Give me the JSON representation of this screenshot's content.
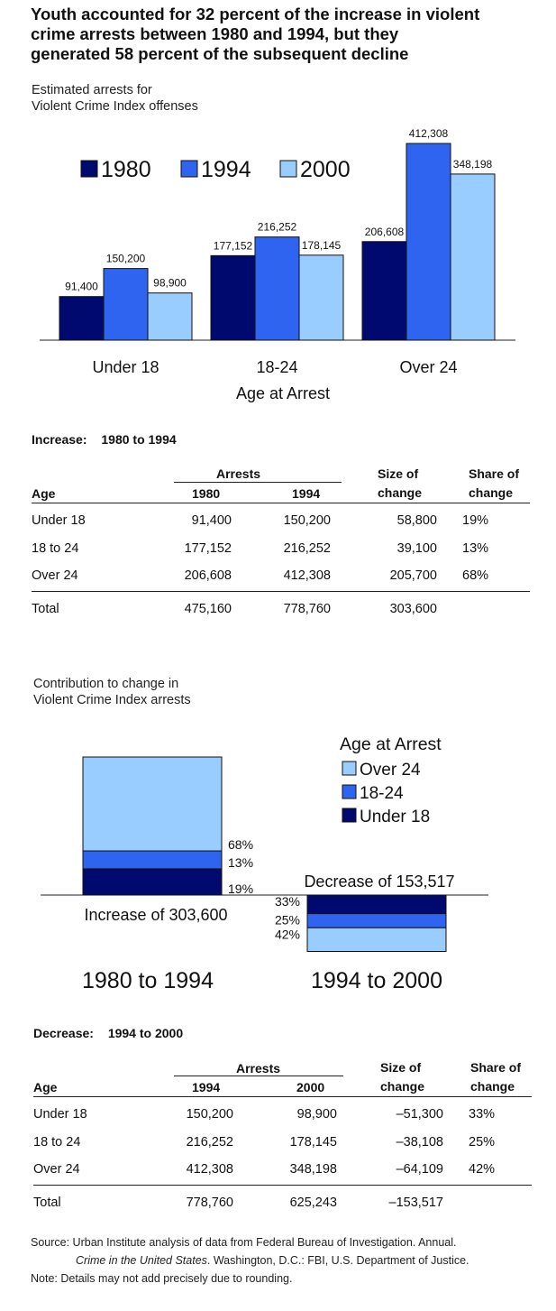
{
  "title": "Youth accounted for 32 percent of the increase in violent\ncrime arrests between 1980 and 1994, but they\ngenerated 58 percent of the subsequent decline",
  "colors": {
    "c1980": "#000a6e",
    "c1994": "#2e64f0",
    "c2000": "#99ccff",
    "under18": "#000a6e",
    "age18_24": "#2e64f0",
    "over24": "#99ccff"
  },
  "chart_data": [
    {
      "type": "bar",
      "subtitle": "Estimated arrests for\nViolent Crime Index offenses",
      "xlabel": "Age at Arrest",
      "ylabel": "",
      "ylim": [
        0,
        450000
      ],
      "categories": [
        "Under 18",
        "18-24",
        "Over 24"
      ],
      "series": [
        {
          "name": "1980",
          "values": [
            91400,
            177152,
            206608
          ],
          "labels": [
            "91,400",
            "177,152",
            "206,608"
          ]
        },
        {
          "name": "1994",
          "values": [
            150200,
            216252,
            412308
          ],
          "labels": [
            "150,200",
            "216,252",
            "412,308"
          ]
        },
        {
          "name": "2000",
          "values": [
            98900,
            178145,
            348198
          ],
          "labels": [
            "98,900",
            "178,145",
            "348,198"
          ]
        }
      ],
      "legend": "top-left"
    },
    {
      "type": "bar",
      "stacked": true,
      "subtitle": "Contribution to change in\nViolent Crime Index arrests",
      "legend_title": "Age at Arrest",
      "legend": [
        "Over 24",
        "18-24",
        "Under 18"
      ],
      "categories": [
        "1980 to 1994",
        "1994 to 2000"
      ],
      "increase_label": "Increase of 303,600",
      "decrease_label": "Decrease of 153,517",
      "series": [
        {
          "name": "Under 18",
          "values": [
            19,
            -33
          ],
          "labels": [
            "19%",
            "33%"
          ]
        },
        {
          "name": "18-24",
          "values": [
            13,
            -25
          ],
          "labels": [
            "13%",
            "25%"
          ]
        },
        {
          "name": "Over 24",
          "values": [
            68,
            -42
          ],
          "labels": [
            "68%",
            "42%"
          ]
        }
      ]
    }
  ],
  "increase_table": {
    "section_label": "Increase:",
    "section_period": "1980 to 1994",
    "headers": {
      "group": "Arrests",
      "age": "Age",
      "y1": "1980",
      "y2": "1994",
      "size1": "Size of",
      "size2": "change",
      "share1": "Share of",
      "share2": "change"
    },
    "rows": [
      {
        "age": "Under 18",
        "a": "91,400",
        "b": "150,200",
        "size": "58,800",
        "share": "19%"
      },
      {
        "age": "18 to 24",
        "a": "177,152",
        "b": "216,252",
        "size": "39,100",
        "share": "13%"
      },
      {
        "age": "Over 24",
        "a": "206,608",
        "b": "412,308",
        "size": "205,700",
        "share": "68%"
      }
    ],
    "total": {
      "age": "Total",
      "a": "475,160",
      "b": "778,760",
      "size": "303,600",
      "share": ""
    }
  },
  "decrease_table": {
    "section_label": "Decrease:",
    "section_period": "1994 to 2000",
    "headers": {
      "group": "Arrests",
      "age": "Age",
      "y1": "1994",
      "y2": "2000",
      "size1": "Size of",
      "size2": "change",
      "share1": "Share of",
      "share2": "change"
    },
    "rows": [
      {
        "age": "Under 18",
        "a": "150,200",
        "b": "98,900",
        "size": "–51,300",
        "share": "33%"
      },
      {
        "age": "18 to 24",
        "a": "216,252",
        "b": "178,145",
        "size": "–38,108",
        "share": "25%"
      },
      {
        "age": "Over 24",
        "a": "412,308",
        "b": "348,198",
        "size": "–64,109",
        "share": "42%"
      }
    ],
    "total": {
      "age": "Total",
      "a": "778,760",
      "b": "625,243",
      "size": "–153,517",
      "share": ""
    }
  },
  "source": {
    "line1": "Source: Urban Institute analysis of data from Federal Bureau of Investigation. Annual.",
    "italic": "Crime in the United States",
    "line2": ". Washington, D.C.: FBI, U.S. Department of Justice.",
    "note": "Note:  Details may not add precisely due to rounding."
  }
}
